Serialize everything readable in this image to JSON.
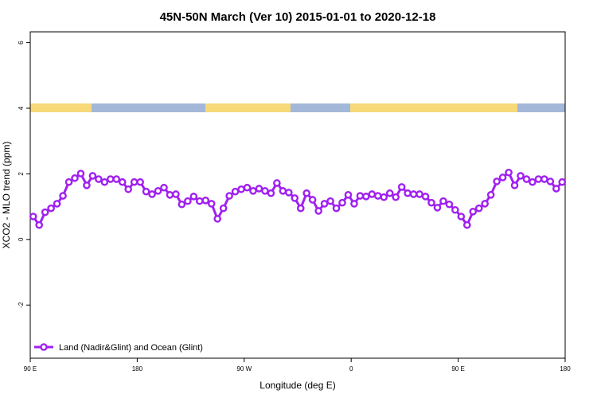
{
  "chart_data": {
    "type": "line",
    "title": "45N-50N March (Ver 10)   2015-01-01 to 2020-12-18",
    "x_label": "Longitude (deg E)",
    "y_label": "XCO2 - MLO trend (ppm)",
    "xlim": [
      90,
      540
    ],
    "ylim": [
      -3.62,
      6.33
    ],
    "xticks": [
      {
        "value": 90,
        "label": "90 E"
      },
      180,
      {
        "value": 270,
        "label": "90 W"
      },
      {
        "value": 360,
        "label": "0"
      },
      {
        "value": 450,
        "label": "90 E"
      },
      {
        "value": 540,
        "label": "180"
      }
    ],
    "yticks": [
      -2,
      0,
      2,
      4,
      6
    ],
    "legend": "bottom-left",
    "x": [
      92.5,
      97.5,
      102.5,
      107.5,
      112.5,
      117.5,
      122.5,
      127.5,
      132.5,
      137.5,
      142.5,
      147.5,
      152.5,
      157.5,
      162.5,
      167.5,
      172.5,
      177.5,
      182.5,
      187.5,
      192.5,
      197.5,
      202.5,
      207.5,
      212.5,
      217.5,
      222.5,
      227.5,
      232.5,
      237.5,
      242.5,
      247.5,
      252.5,
      257.5,
      262.5,
      267.5,
      272.5,
      277.5,
      282.5,
      287.5,
      292.5,
      297.5,
      302.5,
      307.5,
      312.5,
      317.5,
      322.5,
      327.5,
      332.5,
      337.5,
      342.5,
      347.5,
      352.5,
      357.5,
      362.5,
      367.5,
      372.5,
      377.5,
      382.5,
      387.5,
      392.5,
      397.5,
      402.5,
      407.5,
      412.5,
      417.5,
      422.5,
      427.5,
      432.5,
      437.5,
      442.5,
      447.5,
      452.5,
      457.5,
      462.5,
      467.5,
      472.5,
      477.5,
      482.5,
      487.5,
      492.5,
      497.5,
      502.5,
      507.5,
      512.5,
      517.5,
      522.5,
      527.5,
      532.5,
      537.5
    ],
    "series": [
      {
        "name": "Land (Nadir&Glint) and Ocean (Glint)",
        "color": "#a020f0",
        "values": [
          0.7,
          0.44,
          0.83,
          0.95,
          1.09,
          1.33,
          1.75,
          1.87,
          2.01,
          1.65,
          1.94,
          1.84,
          1.75,
          1.84,
          1.84,
          1.75,
          1.53,
          1.75,
          1.75,
          1.46,
          1.38,
          1.48,
          1.58,
          1.36,
          1.38,
          1.07,
          1.17,
          1.31,
          1.17,
          1.19,
          1.09,
          0.63,
          0.95,
          1.33,
          1.46,
          1.53,
          1.58,
          1.48,
          1.55,
          1.48,
          1.41,
          1.72,
          1.48,
          1.43,
          1.26,
          0.95,
          1.41,
          1.21,
          0.87,
          1.09,
          1.17,
          0.95,
          1.12,
          1.36,
          1.09,
          1.33,
          1.31,
          1.38,
          1.33,
          1.29,
          1.41,
          1.29,
          1.6,
          1.41,
          1.38,
          1.38,
          1.31,
          1.12,
          0.97,
          1.17,
          1.07,
          0.9,
          0.7,
          0.44,
          0.85,
          0.95,
          1.09,
          1.36,
          1.77,
          1.89,
          2.04,
          1.65,
          1.94,
          1.84,
          1.75,
          1.84,
          1.84,
          1.77,
          1.55,
          1.75
        ]
      }
    ]
  }
}
